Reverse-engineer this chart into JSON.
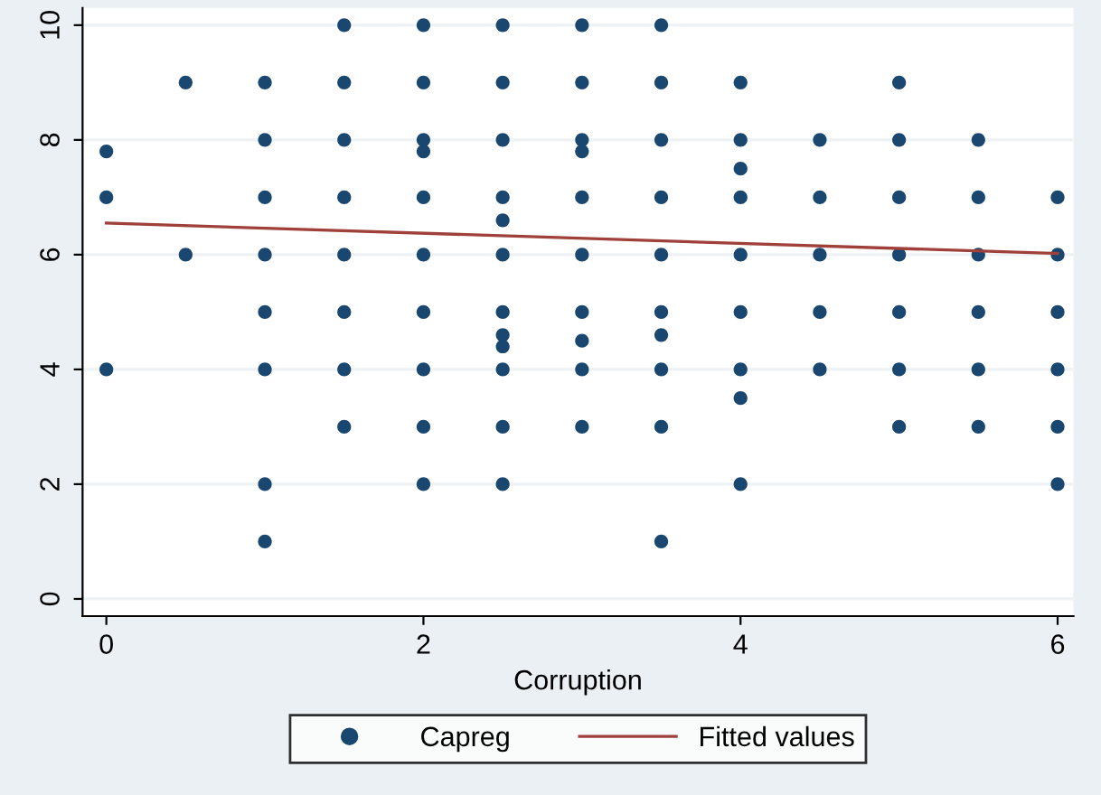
{
  "chart_data": {
    "type": "scatter",
    "xlabel": "Corruption",
    "xlim": [
      -0.15,
      6.1
    ],
    "ylim": [
      -0.3,
      10.3
    ],
    "xticks": [
      0,
      2,
      4,
      6
    ],
    "yticks": [
      0,
      2,
      4,
      6,
      8,
      10
    ],
    "grid": "y",
    "legend": "bottom",
    "marker": "circle",
    "series": [
      {
        "name": "Capreg",
        "color": "#1a476f",
        "x": [
          0,
          0,
          0,
          0.5,
          0.5,
          1,
          1,
          1,
          1,
          1,
          1,
          1,
          1,
          1.5,
          1.5,
          1.5,
          1.5,
          1.5,
          1.5,
          1.5,
          1.5,
          2,
          2,
          2,
          2,
          2,
          2,
          2,
          2,
          2,
          2,
          2.5,
          2.5,
          2.5,
          2.5,
          2.5,
          2.5,
          2.5,
          2.5,
          2.5,
          2.5,
          2.5,
          2.5,
          3,
          3,
          3,
          3,
          3,
          3,
          3,
          3,
          3,
          3,
          3.5,
          3.5,
          3.5,
          3.5,
          3.5,
          3.5,
          3.5,
          3.5,
          3.5,
          3.5,
          4,
          4,
          4,
          4,
          4,
          4,
          4,
          4,
          4,
          4.5,
          4.5,
          4.5,
          4.5,
          4.5,
          5,
          5,
          5,
          5,
          5,
          5,
          5,
          5.5,
          5.5,
          5.5,
          5.5,
          5.5,
          5.5,
          6,
          6,
          6,
          6,
          6,
          6
        ],
        "values": [
          7.8,
          7,
          4,
          9,
          6,
          9,
          8,
          7,
          6,
          5,
          4,
          2,
          1,
          10,
          9,
          8,
          7,
          6,
          5,
          4,
          3,
          10,
          9,
          8,
          7.8,
          7,
          6,
          5,
          4,
          3,
          2,
          10,
          9,
          8,
          7,
          6.6,
          6,
          5,
          4.6,
          4.4,
          4,
          3,
          2,
          10,
          9,
          8,
          7.8,
          7,
          6,
          5,
          4.5,
          4,
          3,
          10,
          9,
          8,
          7,
          6,
          5,
          4.6,
          4,
          3,
          1,
          9,
          8,
          7.5,
          7,
          6,
          5,
          4,
          3.5,
          2,
          8,
          7,
          6,
          5,
          4,
          9,
          8,
          7,
          6,
          5,
          4,
          3,
          8,
          7,
          6,
          5,
          4,
          3,
          7,
          6,
          5,
          4,
          3,
          2
        ]
      },
      {
        "name": "Fitted values",
        "color": "#a0403a",
        "type": "line",
        "marker": "none",
        "x": [
          0,
          6
        ],
        "values": [
          6.55,
          6.02
        ]
      }
    ]
  }
}
